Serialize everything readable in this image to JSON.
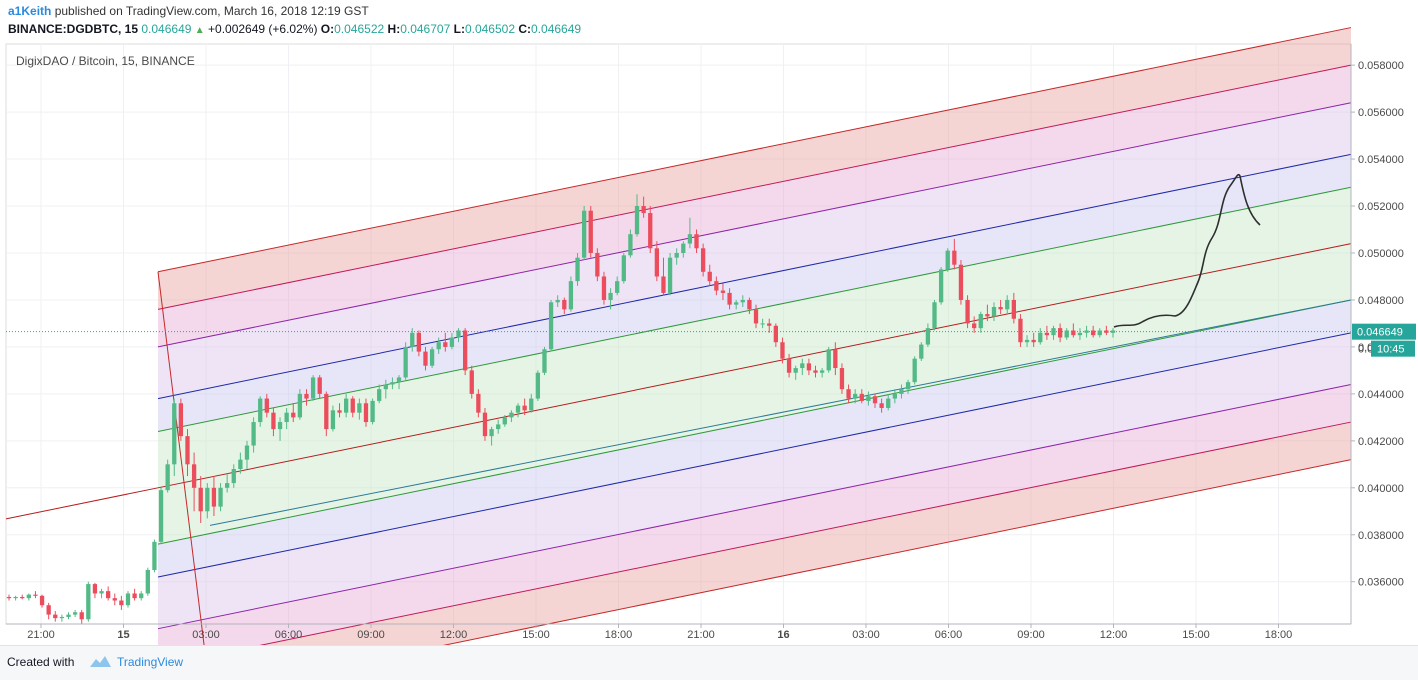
{
  "header": {
    "user": "a1Keith",
    "published_text": "published on TradingView.com, March 16, 2018 12:19 GST",
    "symbol": "BINANCE:DGDBTC, 15",
    "last": "0.046649",
    "change": "+0.002649 (+6.02%)",
    "open_label": "O:",
    "open": "0.046522",
    "high_label": "H:",
    "high": "0.046707",
    "low_label": "L:",
    "low": "0.046502",
    "close_label": "C:",
    "close": "0.046649"
  },
  "chart_title": "DigixDAO / Bitcoin, 15, BINANCE",
  "price_badge": "0.046649",
  "time_badge": "10:45",
  "price_badge_partial": "0.0",
  "footer": {
    "created": "Created with",
    "brand": "TradingView"
  },
  "colors": {
    "up": "#53b987",
    "down": "#eb4d5c",
    "accent": "#2a8adf"
  },
  "chart_data": {
    "type": "candlestick",
    "title": "DigixDAO / Bitcoin, 15, BINANCE",
    "ylim": [
      0.0342,
      0.0589
    ],
    "y_ticks": [
      "0.036000",
      "0.038000",
      "0.040000",
      "0.042000",
      "0.044000",
      "0.046000",
      "0.048000",
      "0.050000",
      "0.052000",
      "0.054000",
      "0.056000",
      "0.058000"
    ],
    "x_ticks": [
      "21:00",
      "15",
      "03:00",
      "06:00",
      "09:00",
      "12:00",
      "15:00",
      "18:00",
      "21:00",
      "16",
      "03:00",
      "06:00",
      "09:00",
      "12:00",
      "15:00",
      "18:00"
    ],
    "last_price": 0.046649,
    "candles": [
      [
        0.03535,
        0.03545,
        0.0352,
        0.0353
      ],
      [
        0.0353,
        0.0354,
        0.0352,
        0.03535
      ],
      [
        0.03535,
        0.03545,
        0.03525,
        0.0353
      ],
      [
        0.0353,
        0.0355,
        0.0352,
        0.03545
      ],
      [
        0.03545,
        0.0356,
        0.0353,
        0.0354
      ],
      [
        0.0354,
        0.03545,
        0.0349,
        0.035
      ],
      [
        0.035,
        0.0351,
        0.0344,
        0.0346
      ],
      [
        0.0346,
        0.03475,
        0.0343,
        0.03445
      ],
      [
        0.03445,
        0.0346,
        0.0343,
        0.0345
      ],
      [
        0.0345,
        0.0347,
        0.0344,
        0.0346
      ],
      [
        0.0346,
        0.0348,
        0.0345,
        0.0347
      ],
      [
        0.0347,
        0.0348,
        0.0342,
        0.0344
      ],
      [
        0.0344,
        0.036,
        0.0343,
        0.0359
      ],
      [
        0.0359,
        0.03595,
        0.0353,
        0.0355
      ],
      [
        0.0355,
        0.0357,
        0.0353,
        0.0356
      ],
      [
        0.0356,
        0.0358,
        0.0352,
        0.0353
      ],
      [
        0.0353,
        0.0355,
        0.035,
        0.0352
      ],
      [
        0.0352,
        0.0354,
        0.0348,
        0.035
      ],
      [
        0.035,
        0.0356,
        0.0349,
        0.0355
      ],
      [
        0.0355,
        0.0357,
        0.0352,
        0.0353
      ],
      [
        0.0353,
        0.0356,
        0.0352,
        0.0355
      ],
      [
        0.0355,
        0.0366,
        0.0354,
        0.0365
      ],
      [
        0.0365,
        0.0378,
        0.0364,
        0.0377
      ],
      [
        0.0377,
        0.04,
        0.0376,
        0.0399
      ],
      [
        0.0399,
        0.0412,
        0.0398,
        0.041
      ],
      [
        0.041,
        0.0438,
        0.0405,
        0.0436
      ],
      [
        0.0436,
        0.0438,
        0.042,
        0.0422
      ],
      [
        0.0422,
        0.0425,
        0.0405,
        0.041
      ],
      [
        0.041,
        0.0415,
        0.039,
        0.04
      ],
      [
        0.04,
        0.0405,
        0.0385,
        0.039
      ],
      [
        0.039,
        0.0402,
        0.0387,
        0.04
      ],
      [
        0.04,
        0.0405,
        0.0388,
        0.0392
      ],
      [
        0.0392,
        0.0402,
        0.039,
        0.04
      ],
      [
        0.04,
        0.0406,
        0.0398,
        0.0402
      ],
      [
        0.0402,
        0.041,
        0.04,
        0.0408
      ],
      [
        0.0408,
        0.0415,
        0.0406,
        0.0412
      ],
      [
        0.0412,
        0.042,
        0.0408,
        0.0418
      ],
      [
        0.0418,
        0.043,
        0.0415,
        0.0428
      ],
      [
        0.0428,
        0.0439,
        0.0426,
        0.0438
      ],
      [
        0.0438,
        0.044,
        0.043,
        0.0432
      ],
      [
        0.0432,
        0.0434,
        0.0422,
        0.0425
      ],
      [
        0.0425,
        0.043,
        0.042,
        0.0428
      ],
      [
        0.0428,
        0.0434,
        0.0425,
        0.0432
      ],
      [
        0.0432,
        0.0436,
        0.0428,
        0.043
      ],
      [
        0.043,
        0.0442,
        0.0429,
        0.044
      ],
      [
        0.044,
        0.0442,
        0.0435,
        0.0438
      ],
      [
        0.0438,
        0.0448,
        0.0437,
        0.0447
      ],
      [
        0.0447,
        0.0448,
        0.0438,
        0.044
      ],
      [
        0.044,
        0.0441,
        0.0422,
        0.0425
      ],
      [
        0.0425,
        0.0435,
        0.0424,
        0.0433
      ],
      [
        0.0433,
        0.0436,
        0.043,
        0.0432
      ],
      [
        0.0432,
        0.044,
        0.043,
        0.0438
      ],
      [
        0.0438,
        0.0439,
        0.043,
        0.0432
      ],
      [
        0.0432,
        0.0438,
        0.0429,
        0.0436
      ],
      [
        0.0436,
        0.0438,
        0.0426,
        0.0428
      ],
      [
        0.0428,
        0.0438,
        0.0427,
        0.0437
      ],
      [
        0.0437,
        0.0444,
        0.0436,
        0.0442
      ],
      [
        0.0442,
        0.0446,
        0.0438,
        0.0444
      ],
      [
        0.0444,
        0.0447,
        0.0442,
        0.0445
      ],
      [
        0.0445,
        0.0448,
        0.0442,
        0.0447
      ],
      [
        0.0447,
        0.0462,
        0.0446,
        0.046
      ],
      [
        0.046,
        0.0468,
        0.0458,
        0.0466
      ],
      [
        0.0466,
        0.0467,
        0.0456,
        0.0458
      ],
      [
        0.0458,
        0.046,
        0.045,
        0.0452
      ],
      [
        0.0452,
        0.046,
        0.0451,
        0.0459
      ],
      [
        0.0459,
        0.0464,
        0.0457,
        0.0462
      ],
      [
        0.0462,
        0.0466,
        0.0458,
        0.046
      ],
      [
        0.046,
        0.0466,
        0.0459,
        0.0464
      ],
      [
        0.0464,
        0.0468,
        0.0462,
        0.0467
      ],
      [
        0.0467,
        0.0468,
        0.0448,
        0.045
      ],
      [
        0.045,
        0.0452,
        0.0438,
        0.044
      ],
      [
        0.044,
        0.0442,
        0.043,
        0.0432
      ],
      [
        0.0432,
        0.0434,
        0.042,
        0.0422
      ],
      [
        0.0422,
        0.0426,
        0.0418,
        0.0425
      ],
      [
        0.0425,
        0.0429,
        0.0423,
        0.0427
      ],
      [
        0.0427,
        0.0431,
        0.0426,
        0.043
      ],
      [
        0.043,
        0.0433,
        0.0428,
        0.0432
      ],
      [
        0.0432,
        0.0436,
        0.043,
        0.0435
      ],
      [
        0.0435,
        0.0438,
        0.0431,
        0.0433
      ],
      [
        0.0433,
        0.044,
        0.0432,
        0.0438
      ],
      [
        0.0438,
        0.045,
        0.0437,
        0.0449
      ],
      [
        0.0449,
        0.046,
        0.0448,
        0.0459
      ],
      [
        0.0459,
        0.048,
        0.0458,
        0.0479
      ],
      [
        0.0479,
        0.0482,
        0.0477,
        0.048
      ],
      [
        0.048,
        0.0481,
        0.0474,
        0.0476
      ],
      [
        0.0476,
        0.049,
        0.0475,
        0.0488
      ],
      [
        0.0488,
        0.05,
        0.0486,
        0.0498
      ],
      [
        0.0498,
        0.052,
        0.0497,
        0.0518
      ],
      [
        0.0518,
        0.052,
        0.0498,
        0.05
      ],
      [
        0.05,
        0.0502,
        0.0488,
        0.049
      ],
      [
        0.049,
        0.0492,
        0.0478,
        0.048
      ],
      [
        0.048,
        0.0485,
        0.0476,
        0.0483
      ],
      [
        0.0483,
        0.049,
        0.0482,
        0.0488
      ],
      [
        0.0488,
        0.05,
        0.0487,
        0.0499
      ],
      [
        0.0499,
        0.051,
        0.0498,
        0.0508
      ],
      [
        0.0508,
        0.0525,
        0.0507,
        0.052
      ],
      [
        0.052,
        0.0524,
        0.0515,
        0.0517
      ],
      [
        0.0517,
        0.052,
        0.05,
        0.0502
      ],
      [
        0.0502,
        0.0505,
        0.0488,
        0.049
      ],
      [
        0.049,
        0.0498,
        0.0482,
        0.0483
      ],
      [
        0.0483,
        0.05,
        0.0482,
        0.0498
      ],
      [
        0.0498,
        0.0502,
        0.0495,
        0.05
      ],
      [
        0.05,
        0.0505,
        0.0498,
        0.0504
      ],
      [
        0.0504,
        0.0515,
        0.0502,
        0.0508
      ],
      [
        0.0508,
        0.051,
        0.05,
        0.0502
      ],
      [
        0.0502,
        0.0504,
        0.049,
        0.0492
      ],
      [
        0.0492,
        0.0495,
        0.0486,
        0.0488
      ],
      [
        0.0488,
        0.049,
        0.0482,
        0.0484
      ],
      [
        0.0484,
        0.0487,
        0.048,
        0.0483
      ],
      [
        0.0483,
        0.0485,
        0.0476,
        0.0478
      ],
      [
        0.0478,
        0.048,
        0.0476,
        0.0479
      ],
      [
        0.0479,
        0.0482,
        0.0477,
        0.048
      ],
      [
        0.048,
        0.0481,
        0.0474,
        0.0476
      ],
      [
        0.0476,
        0.0478,
        0.0468,
        0.047
      ],
      [
        0.047,
        0.0472,
        0.0468,
        0.047
      ],
      [
        0.047,
        0.0472,
        0.0466,
        0.0469
      ],
      [
        0.0469,
        0.047,
        0.046,
        0.0462
      ],
      [
        0.0462,
        0.0464,
        0.0453,
        0.0455
      ],
      [
        0.0455,
        0.0457,
        0.0447,
        0.0449
      ],
      [
        0.0449,
        0.0452,
        0.0446,
        0.0451
      ],
      [
        0.0451,
        0.0455,
        0.0448,
        0.0453
      ],
      [
        0.0453,
        0.0455,
        0.0448,
        0.045
      ],
      [
        0.045,
        0.0452,
        0.0447,
        0.0449
      ],
      [
        0.0449,
        0.0451,
        0.0447,
        0.045
      ],
      [
        0.045,
        0.046,
        0.0449,
        0.0459
      ],
      [
        0.0459,
        0.0462,
        0.0448,
        0.0451
      ],
      [
        0.0451,
        0.0453,
        0.044,
        0.0442
      ],
      [
        0.0442,
        0.0444,
        0.0436,
        0.0438
      ],
      [
        0.0438,
        0.0442,
        0.0436,
        0.044
      ],
      [
        0.044,
        0.0442,
        0.0436,
        0.0437
      ],
      [
        0.0437,
        0.0441,
        0.0435,
        0.0439
      ],
      [
        0.0439,
        0.044,
        0.0434,
        0.0436
      ],
      [
        0.0436,
        0.0438,
        0.0432,
        0.0434
      ],
      [
        0.0434,
        0.044,
        0.0433,
        0.0438
      ],
      [
        0.0438,
        0.0442,
        0.0436,
        0.044
      ],
      [
        0.044,
        0.0444,
        0.0438,
        0.0442
      ],
      [
        0.0442,
        0.0446,
        0.044,
        0.0445
      ],
      [
        0.0445,
        0.0456,
        0.0444,
        0.0455
      ],
      [
        0.0455,
        0.0462,
        0.0454,
        0.0461
      ],
      [
        0.0461,
        0.047,
        0.046,
        0.0468
      ],
      [
        0.0468,
        0.048,
        0.0467,
        0.0479
      ],
      [
        0.0479,
        0.0494,
        0.0478,
        0.0493
      ],
      [
        0.0493,
        0.0502,
        0.0492,
        0.0501
      ],
      [
        0.0501,
        0.0506,
        0.0493,
        0.0495
      ],
      [
        0.0495,
        0.0497,
        0.0478,
        0.048
      ],
      [
        0.048,
        0.0482,
        0.0468,
        0.047
      ],
      [
        0.047,
        0.0473,
        0.0466,
        0.0468
      ],
      [
        0.0468,
        0.0475,
        0.0466,
        0.0474
      ],
      [
        0.0474,
        0.0478,
        0.0471,
        0.0473
      ],
      [
        0.0473,
        0.0479,
        0.0471,
        0.0477
      ],
      [
        0.0477,
        0.048,
        0.0474,
        0.0476
      ],
      [
        0.0476,
        0.0482,
        0.0474,
        0.048
      ],
      [
        0.048,
        0.0483,
        0.047,
        0.0472
      ],
      [
        0.0472,
        0.0474,
        0.046,
        0.0462
      ],
      [
        0.0462,
        0.0465,
        0.046,
        0.0463
      ],
      [
        0.0463,
        0.0466,
        0.046,
        0.0462
      ],
      [
        0.0462,
        0.0468,
        0.0461,
        0.0466
      ],
      [
        0.0466,
        0.0469,
        0.0463,
        0.0465
      ],
      [
        0.0465,
        0.0469,
        0.0463,
        0.0468
      ],
      [
        0.0468,
        0.047,
        0.0462,
        0.0464
      ],
      [
        0.0464,
        0.0468,
        0.0463,
        0.0467
      ],
      [
        0.0467,
        0.047,
        0.0464,
        0.0465
      ],
      [
        0.0465,
        0.0468,
        0.0463,
        0.0466
      ],
      [
        0.0466,
        0.0469,
        0.0464,
        0.0467
      ],
      [
        0.0467,
        0.0469,
        0.0464,
        0.0465
      ],
      [
        0.0465,
        0.0468,
        0.0464,
        0.0467
      ],
      [
        0.0467,
        0.0469,
        0.0465,
        0.0466
      ],
      [
        0.0466,
        0.0468,
        0.0464,
        0.0467
      ]
    ]
  }
}
